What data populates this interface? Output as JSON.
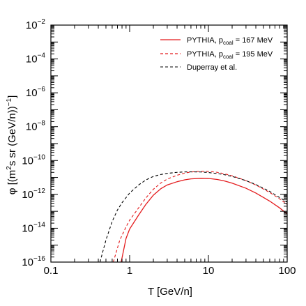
{
  "chart_data": {
    "type": "line",
    "xlabel": "T  [GeV/n]",
    "ylabel_parts": {
      "phi": "φ [(m",
      "sq": "2",
      "mid": "s sr (GeV/n))",
      "minus_one": "−1",
      "close": "]"
    },
    "x_scale": "log",
    "y_scale": "log",
    "xlim": [
      0.1,
      100
    ],
    "ylim": [
      1e-16,
      0.01
    ],
    "x_ticks": [
      {
        "value": 0.1,
        "label": "0.1"
      },
      {
        "value": 1,
        "label": "1"
      },
      {
        "value": 10,
        "label": "10"
      },
      {
        "value": 100,
        "label": "100"
      }
    ],
    "y_ticks": [
      {
        "value": 1e-16,
        "base": "10",
        "exp": "−16"
      },
      {
        "value": 1e-14,
        "base": "10",
        "exp": "−14"
      },
      {
        "value": 1e-12,
        "base": "10",
        "exp": "−12"
      },
      {
        "value": 1e-10,
        "base": "10",
        "exp": "−10"
      },
      {
        "value": 1e-08,
        "base": "10",
        "exp": "−8"
      },
      {
        "value": 1e-06,
        "base": "10",
        "exp": "−6"
      },
      {
        "value": 0.0001,
        "base": "10",
        "exp": "−4"
      },
      {
        "value": 0.01,
        "base": "10",
        "exp": "−2"
      }
    ],
    "grid": false,
    "legend_position": "top-right",
    "series": [
      {
        "legend_main": "PYTHIA,  p",
        "legend_sub": "coal",
        "legend_rest": " = 167 MeV",
        "color": "#e41a1c",
        "dash": "solid",
        "points": [
          [
            0.78,
            1e-16
          ],
          [
            0.9,
            2.5e-15
          ],
          [
            1.0,
            9e-15
          ],
          [
            1.3,
            6e-14
          ],
          [
            1.6,
            2.5e-13
          ],
          [
            2.0,
            9e-13
          ],
          [
            2.5,
            2.2e-12
          ],
          [
            3.0,
            3.6e-12
          ],
          [
            4.0,
            5.6e-12
          ],
          [
            5.0,
            7.2e-12
          ],
          [
            6.0,
            8.2e-12
          ],
          [
            8.0,
            8.9e-12
          ],
          [
            10.0,
            8.7e-12
          ],
          [
            13.0,
            7.6e-12
          ],
          [
            16.0,
            6.2e-12
          ],
          [
            20.0,
            4.6e-12
          ],
          [
            30.0,
            2.3e-12
          ],
          [
            40.0,
            1.2e-12
          ],
          [
            60.0,
            4e-13
          ],
          [
            80.0,
            1.6e-13
          ],
          [
            100.0,
            7e-14
          ]
        ]
      },
      {
        "legend_main": "PYTHIA,  p",
        "legend_sub": "coal",
        "legend_rest": " = 195 MeV",
        "color": "#e41a1c",
        "dash": "dashed",
        "points": [
          [
            0.62,
            1e-16
          ],
          [
            0.75,
            2e-15
          ],
          [
            0.9,
            1.2e-14
          ],
          [
            1.0,
            3e-14
          ],
          [
            1.3,
            1.6e-13
          ],
          [
            1.6,
            6e-13
          ],
          [
            2.0,
            2e-12
          ],
          [
            2.5,
            4.8e-12
          ],
          [
            3.0,
            8e-12
          ],
          [
            4.0,
            1.35e-11
          ],
          [
            5.0,
            1.8e-11
          ],
          [
            6.0,
            2.1e-11
          ],
          [
            8.0,
            2.35e-11
          ],
          [
            10.0,
            2.3e-11
          ],
          [
            13.0,
            2e-11
          ],
          [
            16.0,
            1.65e-11
          ],
          [
            20.0,
            1.25e-11
          ],
          [
            30.0,
            6.5e-12
          ],
          [
            40.0,
            3.6e-12
          ],
          [
            60.0,
            1.3e-12
          ],
          [
            80.0,
            5.5e-13
          ],
          [
            100.0,
            2.5e-13
          ]
        ]
      },
      {
        "legend_main": "Duperray et al.",
        "legend_sub": "",
        "legend_rest": "",
        "color": "#000000",
        "dash": "dashed",
        "points": [
          [
            0.42,
            1e-16
          ],
          [
            0.5,
            2e-15
          ],
          [
            0.6,
            2.5e-14
          ],
          [
            0.7,
            1.2e-13
          ],
          [
            0.8,
            3.2e-13
          ],
          [
            1.0,
            1.2e-12
          ],
          [
            1.3,
            3.6e-12
          ],
          [
            1.6,
            7e-12
          ],
          [
            2.0,
            1.15e-11
          ],
          [
            2.5,
            1.5e-11
          ],
          [
            3.0,
            1.75e-11
          ],
          [
            4.0,
            2e-11
          ],
          [
            5.0,
            2.12e-11
          ],
          [
            6.0,
            2.15e-11
          ],
          [
            8.0,
            2.1e-11
          ],
          [
            10.0,
            1.95e-11
          ],
          [
            13.0,
            1.7e-11
          ],
          [
            16.0,
            1.45e-11
          ],
          [
            20.0,
            1.15e-11
          ],
          [
            30.0,
            6.5e-12
          ],
          [
            40.0,
            3.8e-12
          ],
          [
            60.0,
            1.5e-12
          ],
          [
            80.0,
            6.5e-13
          ],
          [
            100.0,
            3.5e-13
          ]
        ]
      }
    ]
  }
}
